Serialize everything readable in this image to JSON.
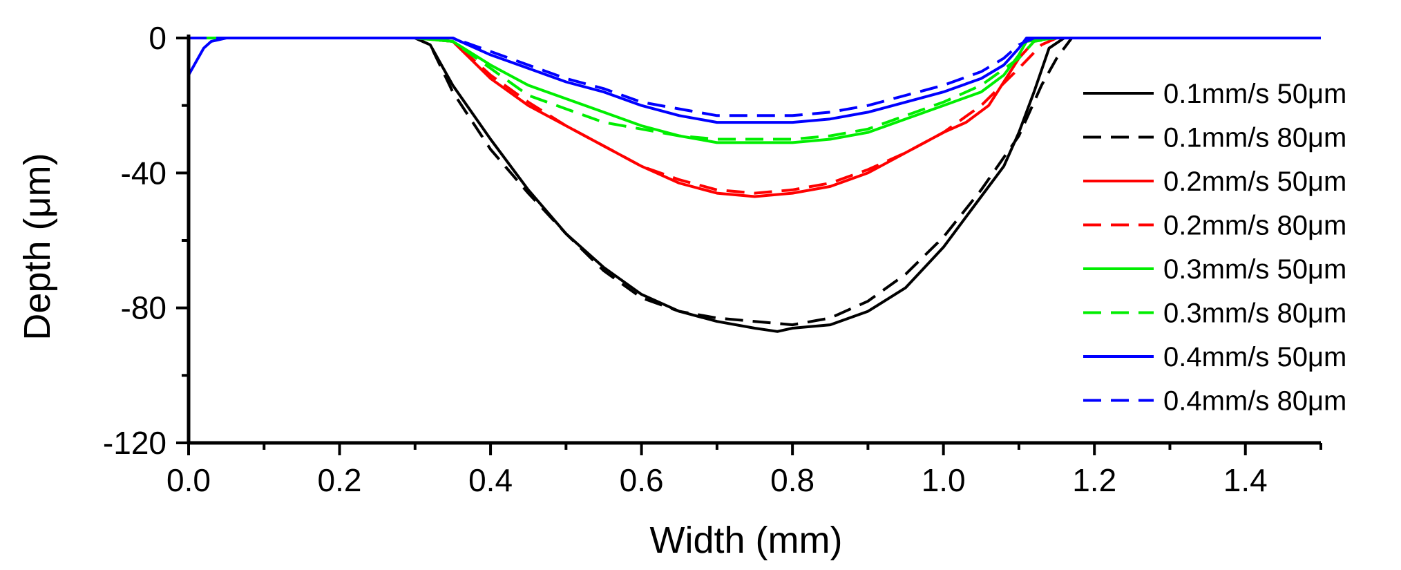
{
  "chart_data": {
    "type": "line",
    "title": "",
    "xlabel": "Width (mm)",
    "ylabel": "Depth (μm)",
    "xlim": [
      0.0,
      1.5
    ],
    "ylim": [
      -120,
      0
    ],
    "xticks": [
      0.0,
      0.2,
      0.4,
      0.6,
      0.8,
      1.0,
      1.2,
      1.4
    ],
    "xtick_labels": [
      "0.0",
      "0.2",
      "0.4",
      "0.6",
      "0.8",
      "1.0",
      "1.2",
      "1.4"
    ],
    "yticks": [
      0,
      -40,
      -80,
      -120
    ],
    "ytick_labels": [
      "0",
      "-40",
      "-80",
      "-120"
    ],
    "legend_position": "right",
    "colors": {
      "black": "#000000",
      "red": "#ff0000",
      "green": "#00ee00",
      "blue": "#0000ff"
    },
    "series": [
      {
        "name": "0.1mm/s 50μm",
        "color": "#000000",
        "dash": "solid",
        "x": [
          0.0,
          0.05,
          0.1,
          0.15,
          0.2,
          0.25,
          0.3,
          0.32,
          0.35,
          0.4,
          0.45,
          0.5,
          0.55,
          0.6,
          0.65,
          0.7,
          0.75,
          0.78,
          0.8,
          0.85,
          0.9,
          0.95,
          1.0,
          1.05,
          1.08,
          1.1,
          1.12,
          1.14,
          1.16,
          1.2,
          1.3,
          1.4,
          1.5
        ],
        "y": [
          0,
          0,
          0,
          0,
          0,
          0,
          0,
          -2,
          -14,
          -30,
          -45,
          -58,
          -68,
          -76,
          -81,
          -84,
          -86,
          -87,
          -86,
          -85,
          -81,
          -74,
          -62,
          -47,
          -38,
          -28,
          -16,
          -3,
          0,
          0,
          0,
          0,
          0
        ]
      },
      {
        "name": "0.1mm/s 80μm",
        "color": "#000000",
        "dash": "dashed",
        "x": [
          0.0,
          0.05,
          0.1,
          0.15,
          0.2,
          0.25,
          0.3,
          0.32,
          0.35,
          0.4,
          0.45,
          0.5,
          0.55,
          0.6,
          0.65,
          0.7,
          0.75,
          0.8,
          0.85,
          0.9,
          0.95,
          1.0,
          1.05,
          1.1,
          1.13,
          1.15,
          1.17,
          1.2,
          1.3,
          1.4,
          1.5
        ],
        "y": [
          0,
          0,
          0,
          0,
          0,
          0,
          0,
          -2,
          -16,
          -33,
          -46,
          -58,
          -69,
          -77,
          -81,
          -83,
          -84,
          -85,
          -83,
          -78,
          -70,
          -59,
          -45,
          -29,
          -14,
          -6,
          0,
          0,
          0,
          0,
          0
        ]
      },
      {
        "name": "0.2mm/s 50μm",
        "color": "#ff0000",
        "dash": "solid",
        "x": [
          0.0,
          0.05,
          0.1,
          0.15,
          0.2,
          0.25,
          0.3,
          0.35,
          0.4,
          0.45,
          0.5,
          0.55,
          0.6,
          0.65,
          0.7,
          0.75,
          0.8,
          0.85,
          0.9,
          0.95,
          1.0,
          1.03,
          1.06,
          1.08,
          1.1,
          1.12,
          1.14,
          1.2,
          1.3,
          1.4,
          1.5
        ],
        "y": [
          0,
          0,
          0,
          0,
          0,
          0,
          0,
          -1,
          -12,
          -20,
          -26,
          -32,
          -38,
          -43,
          -46,
          -47,
          -46,
          -44,
          -40,
          -34,
          -28,
          -25,
          -20,
          -13,
          -6,
          -1,
          0,
          0,
          0,
          0,
          0
        ]
      },
      {
        "name": "0.2mm/s 80μm",
        "color": "#ff0000",
        "dash": "dashed",
        "x": [
          0.0,
          0.05,
          0.1,
          0.15,
          0.2,
          0.25,
          0.3,
          0.35,
          0.4,
          0.45,
          0.5,
          0.55,
          0.6,
          0.65,
          0.7,
          0.75,
          0.8,
          0.85,
          0.9,
          0.95,
          1.0,
          1.05,
          1.1,
          1.13,
          1.15,
          1.2,
          1.3,
          1.4,
          1.5
        ],
        "y": [
          0,
          0,
          0,
          0,
          0,
          0,
          0,
          -1,
          -11,
          -19,
          -26,
          -32,
          -38,
          -42,
          -45,
          -46,
          -45,
          -43,
          -39,
          -34,
          -28,
          -20,
          -9,
          -2,
          0,
          0,
          0,
          0,
          0
        ]
      },
      {
        "name": "0.3mm/s 50μm",
        "color": "#00ee00",
        "dash": "solid",
        "x": [
          0.0,
          0.05,
          0.1,
          0.15,
          0.2,
          0.25,
          0.3,
          0.35,
          0.4,
          0.45,
          0.5,
          0.55,
          0.6,
          0.65,
          0.7,
          0.75,
          0.8,
          0.85,
          0.9,
          0.95,
          1.0,
          1.05,
          1.08,
          1.1,
          1.11,
          1.15,
          1.2,
          1.3,
          1.4,
          1.5
        ],
        "y": [
          0,
          0,
          0,
          0,
          0,
          0,
          0,
          -1,
          -8,
          -14,
          -18,
          -22,
          -26,
          -29,
          -31,
          -31,
          -31,
          -30,
          -28,
          -24,
          -20,
          -16,
          -11,
          -5,
          -1,
          0,
          0,
          0,
          0,
          0
        ]
      },
      {
        "name": "0.3mm/s 80μm",
        "color": "#00ee00",
        "dash": "dashed",
        "x": [
          0.0,
          0.05,
          0.1,
          0.15,
          0.2,
          0.25,
          0.3,
          0.35,
          0.4,
          0.45,
          0.5,
          0.55,
          0.6,
          0.65,
          0.7,
          0.75,
          0.8,
          0.85,
          0.9,
          0.95,
          1.0,
          1.05,
          1.1,
          1.12,
          1.15,
          1.2,
          1.3,
          1.4,
          1.5
        ],
        "y": [
          0,
          0,
          0,
          0,
          0,
          0,
          0,
          -1,
          -9,
          -17,
          -21,
          -25,
          -27,
          -29,
          -30,
          -30,
          -30,
          -29,
          -27,
          -23,
          -19,
          -14,
          -6,
          -1,
          0,
          0,
          0,
          0,
          0
        ]
      },
      {
        "name": "0.4mm/s 50μm",
        "color": "#0000ff",
        "dash": "solid",
        "x": [
          0.0,
          0.01,
          0.02,
          0.03,
          0.05,
          0.1,
          0.15,
          0.2,
          0.25,
          0.3,
          0.35,
          0.4,
          0.45,
          0.5,
          0.55,
          0.6,
          0.65,
          0.7,
          0.75,
          0.8,
          0.85,
          0.9,
          0.95,
          1.0,
          1.05,
          1.08,
          1.1,
          1.11,
          1.15,
          1.2,
          1.3,
          1.4,
          1.5
        ],
        "y": [
          -11,
          -7,
          -3,
          -1,
          0,
          0,
          0,
          0,
          0,
          0,
          0,
          -5,
          -9,
          -13,
          -16,
          -20,
          -23,
          -25,
          -25,
          -25,
          -24,
          -22,
          -19,
          -16,
          -12,
          -8,
          -3,
          0,
          0,
          0,
          0,
          0,
          0
        ]
      },
      {
        "name": "0.4mm/s 80μm",
        "color": "#0000ff",
        "dash": "dashed",
        "x": [
          0.0,
          0.05,
          0.1,
          0.15,
          0.2,
          0.25,
          0.3,
          0.35,
          0.4,
          0.45,
          0.5,
          0.55,
          0.6,
          0.65,
          0.7,
          0.75,
          0.8,
          0.85,
          0.9,
          0.95,
          1.0,
          1.05,
          1.08,
          1.1,
          1.12,
          1.15,
          1.2,
          1.3,
          1.4,
          1.5
        ],
        "y": [
          0,
          0,
          0,
          0,
          0,
          0,
          0,
          0,
          -4,
          -8,
          -12,
          -15,
          -19,
          -21,
          -23,
          -23,
          -23,
          -22,
          -20,
          -17,
          -14,
          -10,
          -6,
          -2,
          0,
          0,
          0,
          0,
          0,
          0
        ]
      }
    ]
  }
}
